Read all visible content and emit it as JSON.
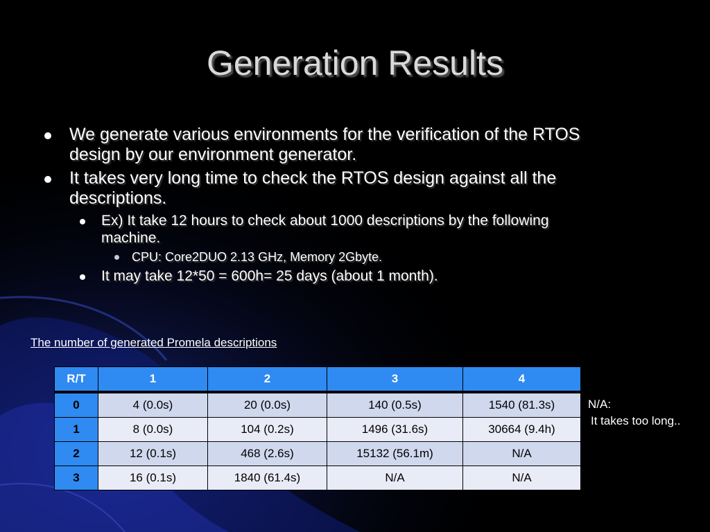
{
  "slide": {
    "title": "Generation Results",
    "bullets": [
      {
        "level": 1,
        "text": "We generate various environments for the verification of the RTOS design by our environment generator."
      },
      {
        "level": 1,
        "text": "It takes very long time to check the RTOS design against all the descriptions."
      },
      {
        "level": 2,
        "text": "Ex) It take 12 hours to check about 1000 descriptions by the following machine."
      },
      {
        "level": 3,
        "text": "CPU: Core2DUO 2.13 GHz, Memory 2Gbyte."
      },
      {
        "level": 2,
        "text": "It may take 12*50 = 600h= 25 days (about 1 month)."
      }
    ],
    "table_caption": "The number of generated Promela descriptions",
    "table": {
      "header": [
        "R/T",
        "1",
        "2",
        "3",
        "4"
      ],
      "rows": [
        {
          "label": "0",
          "cells": [
            "4 (0.0s)",
            "20 (0.0s)",
            "140 (0.5s)",
            "1540 (81.3s)"
          ]
        },
        {
          "label": "1",
          "cells": [
            "8 (0.0s)",
            "104 (0.2s)",
            "1496 (31.6s)",
            "30664 (9.4h)"
          ]
        },
        {
          "label": "2",
          "cells": [
            "12 (0.1s)",
            "468 (2.6s)",
            "15132 (56.1m)",
            "N/A"
          ]
        },
        {
          "label": "3",
          "cells": [
            "16 (0.1s)",
            "1840 (61.4s)",
            "N/A",
            "N/A"
          ]
        }
      ]
    },
    "note": {
      "line1": "N/A:",
      "line2": "It takes too long.."
    }
  },
  "colors": {
    "background": "#000000",
    "header_cell": "#2f8af2",
    "row_odd": "#d0d8ee",
    "row_even": "#e9ecf6"
  }
}
